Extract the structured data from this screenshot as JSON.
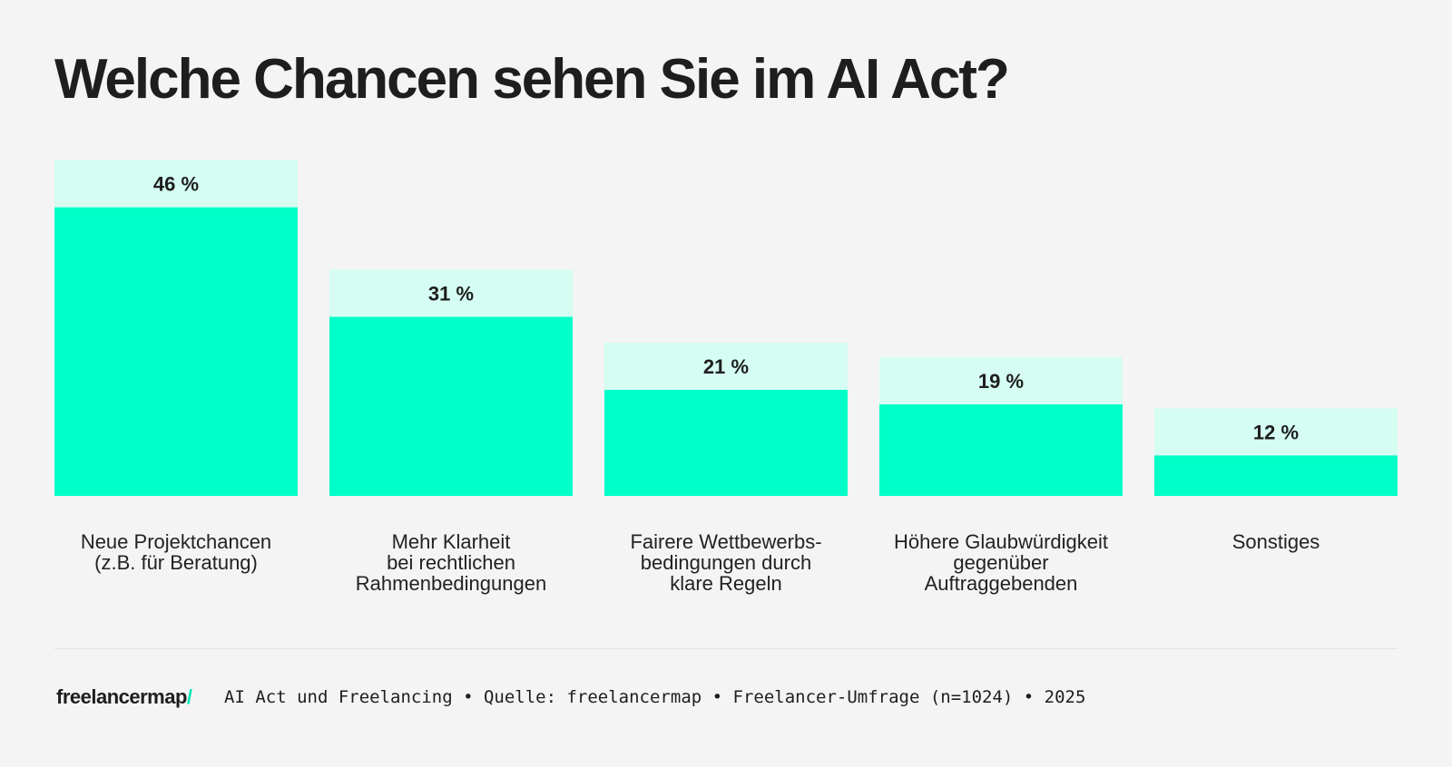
{
  "title": "Welche Chancen sehen Sie im AI Act?",
  "chart_data": {
    "type": "bar",
    "title": "Welche Chancen sehen Sie im AI Act?",
    "categories": [
      "Neue Projektchancen\n(z.B. für Beratung)",
      "Mehr Klarheit\nbei rechtlichen\nRahmenbedingungen",
      "Fairere Wettbewerbs-\nbedingungen durch\nklare Regeln",
      "Höhere Glaubwürdigkeit\ngegenüber\nAuftraggebenden",
      "Sonstiges"
    ],
    "values": [
      46,
      31,
      21,
      19,
      12
    ],
    "data_labels": [
      "46 %",
      "31 %",
      "21 %",
      "19 %",
      "12 %"
    ],
    "unit": "%",
    "grid": false,
    "colors": {
      "bar": "#00ffc8",
      "label_box": "#d5fdf2",
      "background": "#f4f4f4"
    }
  },
  "footer": {
    "logo": "freelancermap",
    "logo_slash": "/",
    "source": "AI Act und Freelancing • Quelle: freelancermap • Freelancer-Umfrage (n=1024) • 2025"
  }
}
